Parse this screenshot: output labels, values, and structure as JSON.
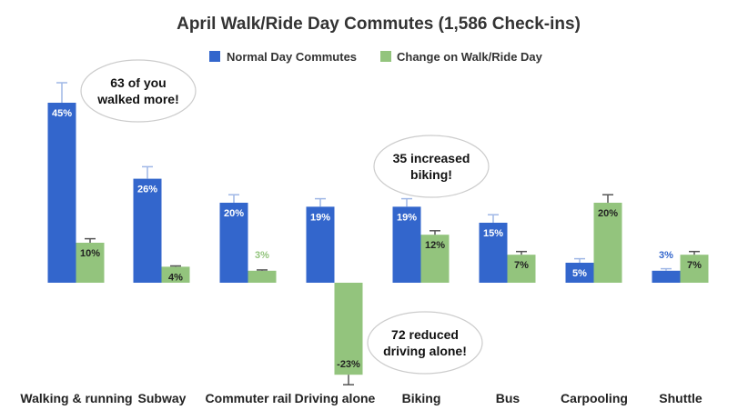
{
  "chart_data": {
    "type": "bar",
    "title": "April Walk/Ride Day Commutes (1,586 Check-ins)",
    "xlabel": "",
    "ylabel": "",
    "categories": [
      "Walking & running",
      "Subway",
      "Commuter rail",
      "Driving alone",
      "Biking",
      "Bus",
      "Carpooling",
      "Shuttle"
    ],
    "series": [
      {
        "name": "Normal Day Commutes",
        "color": "#3366cc",
        "values": [
          45,
          26,
          20,
          19,
          19,
          15,
          5,
          3
        ],
        "labels": [
          "45%",
          "26%",
          "20%",
          "19%",
          "19%",
          "15%",
          "5%",
          "3%"
        ],
        "error_high": [
          50,
          29,
          22,
          21,
          21,
          17,
          6,
          3.5
        ]
      },
      {
        "name": "Change on Walk/Ride Day",
        "color": "#93c47d",
        "values": [
          10,
          4,
          3,
          -23,
          12,
          7,
          20,
          7
        ],
        "labels": [
          "10%",
          "4%",
          "3%",
          "-23%",
          "12%",
          "7%",
          "20%",
          "7%"
        ],
        "error_high": [
          11,
          4.2,
          3.2,
          -25.5,
          13,
          7.8,
          22,
          7.8
        ]
      }
    ],
    "ylim": [
      -26,
      54
    ],
    "grid": false,
    "legend": "top-center",
    "annotations": [
      {
        "lines": [
          "63 of you",
          "walked more!"
        ]
      },
      {
        "lines": [
          "35 increased",
          "biking!"
        ]
      },
      {
        "lines": [
          "72 reduced",
          "driving alone!"
        ]
      }
    ]
  }
}
